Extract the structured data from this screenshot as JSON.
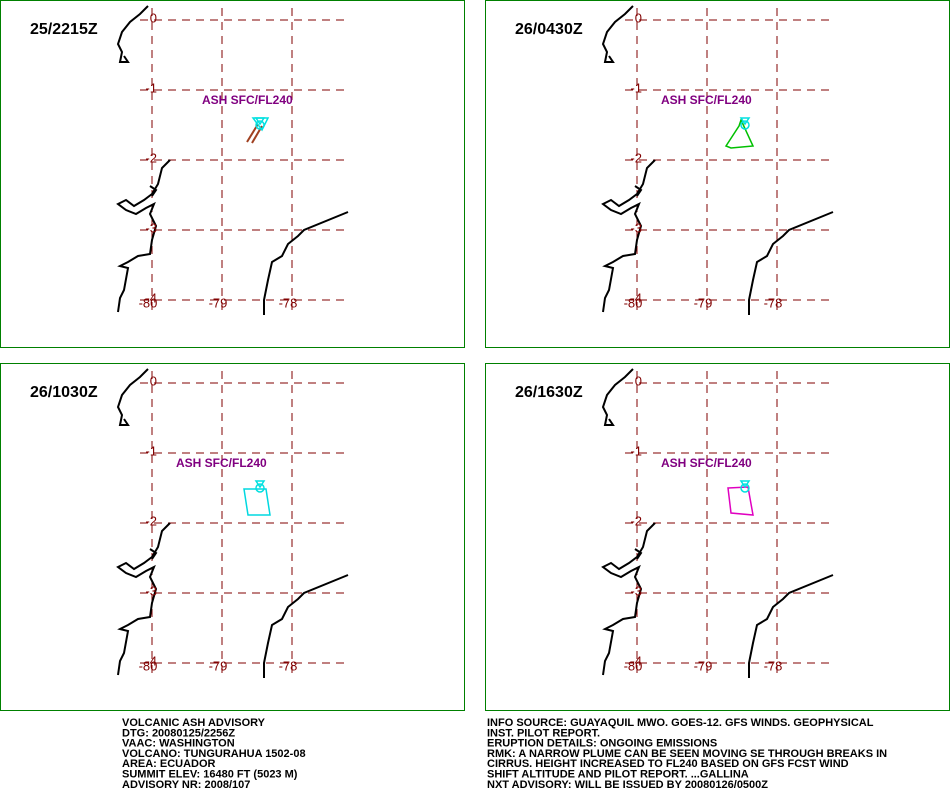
{
  "grid": {
    "lat": [
      0,
      -1,
      -2,
      -3,
      -4
    ],
    "lon": [
      -80,
      -79,
      -78
    ]
  },
  "panels": [
    {
      "time": "25/2215Z",
      "ash_label": "ASH SFC/FL240",
      "ash_color": "#00e0e0"
    },
    {
      "time": "26/0430Z",
      "ash_label": "ASH SFC/FL240",
      "ash_color": "#00c000"
    },
    {
      "time": "26/1030Z",
      "ash_label": "ASH SFC/FL240",
      "ash_color": "#00d8e0"
    },
    {
      "time": "26/1630Z",
      "ash_label": "ASH SFC/FL240",
      "ash_color": "#e000c0"
    }
  ],
  "advisory_left": [
    "VOLCANIC ASH ADVISORY",
    "DTG: 20080125/2256Z",
    "VAAC: WASHINGTON",
    "VOLCANO: TUNGURAHUA 1502-08",
    "AREA: ECUADOR",
    "SUMMIT ELEV: 16480 FT (5023 M)",
    "ADVISORY NR: 2008/107"
  ],
  "advisory_right": [
    "INFO SOURCE: GUAYAQUIL MWO. GOES-12. GFS WINDS. GEOPHYSICAL",
    "INST. PILOT REPORT.",
    "ERUPTION DETAILS: ONGOING EMISSIONS",
    "RMK: A NARROW PLUME CAN BE SEEN MOVING SE THROUGH BREAKS IN",
    "CIRRUS. HEIGHT INCREASED TO FL240 BASED ON GFS FCST WIND",
    "SHIFT ALTITUDE AND PILOT REPORT. ...GALLINA",
    "NXT ADVISORY: WILL BE ISSUED BY 20080126/0500Z"
  ]
}
